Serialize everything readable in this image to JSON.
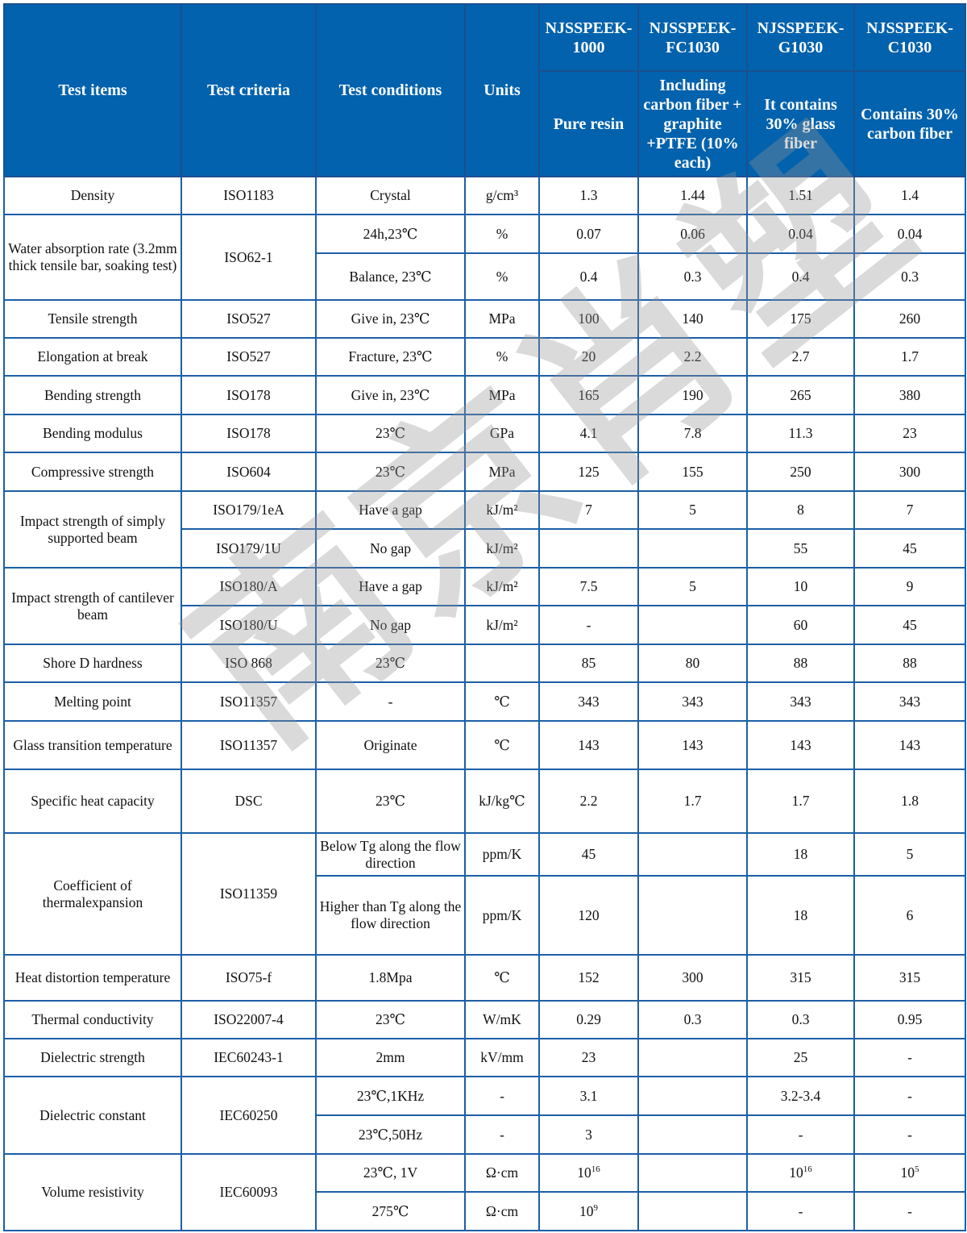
{
  "watermark": "南京肖塑",
  "header": {
    "test_items": "Test items",
    "test_criteria": "Test criteria",
    "test_conditions": "Test conditions",
    "units": "Units",
    "products": [
      {
        "name": "NJSSPEEK-1000",
        "desc": "Pure resin"
      },
      {
        "name": "NJSSPEEK-FC1030",
        "desc": "Including carbon fiber + graphite +PTFE (10% each)"
      },
      {
        "name": "NJSSPEEK-G1030",
        "desc": "It contains 30% glass fiber"
      },
      {
        "name": "NJSSPEEK-C1030",
        "desc": "Contains 30% carbon fiber"
      }
    ]
  },
  "rows": [
    {
      "cells": [
        {
          "t": "Density"
        },
        {
          "t": "ISO1183"
        },
        {
          "t": "Crystal"
        },
        {
          "t": "g/cm³"
        },
        {
          "t": "1.3"
        },
        {
          "t": "1.44"
        },
        {
          "t": "1.51"
        },
        {
          "t": "1.4"
        }
      ]
    },
    {
      "cells": [
        {
          "t": "Water absorption rate (3.2mm thick tensile bar, soaking test)",
          "rs": 2
        },
        {
          "t": "ISO62-1",
          "rs": 2
        },
        {
          "t": "24h,23℃"
        },
        {
          "t": "%"
        },
        {
          "t": "0.07"
        },
        {
          "t": "0.06"
        },
        {
          "t": "0.04"
        },
        {
          "t": "0.04"
        }
      ]
    },
    {
      "cells": [
        {
          "t": "Balance, 23℃"
        },
        {
          "t": "%"
        },
        {
          "t": "0.4"
        },
        {
          "t": "0.3"
        },
        {
          "t": "0.4"
        },
        {
          "t": "0.3"
        }
      ]
    },
    {
      "cells": [
        {
          "t": "Tensile strength"
        },
        {
          "t": "ISO527"
        },
        {
          "t": "Give in, 23℃"
        },
        {
          "t": "MPa"
        },
        {
          "t": "100"
        },
        {
          "t": "140"
        },
        {
          "t": "175"
        },
        {
          "t": "260"
        }
      ]
    },
    {
      "cells": [
        {
          "t": "Elongation at break"
        },
        {
          "t": "ISO527"
        },
        {
          "t": "Fracture, 23℃"
        },
        {
          "t": "%"
        },
        {
          "t": "20"
        },
        {
          "t": "2.2"
        },
        {
          "t": "2.7"
        },
        {
          "t": "1.7"
        }
      ]
    },
    {
      "cells": [
        {
          "t": "Bending strength"
        },
        {
          "t": "ISO178"
        },
        {
          "t": "Give in, 23℃"
        },
        {
          "t": "MPa"
        },
        {
          "t": "165"
        },
        {
          "t": "190"
        },
        {
          "t": "265"
        },
        {
          "t": "380"
        }
      ]
    },
    {
      "cells": [
        {
          "t": "Bending modulus"
        },
        {
          "t": "ISO178"
        },
        {
          "t": "23℃"
        },
        {
          "t": "GPa"
        },
        {
          "t": "4.1"
        },
        {
          "t": "7.8"
        },
        {
          "t": "11.3"
        },
        {
          "t": "23"
        }
      ]
    },
    {
      "cells": [
        {
          "t": "Compressive strength"
        },
        {
          "t": "ISO604"
        },
        {
          "t": "23℃"
        },
        {
          "t": "MPa"
        },
        {
          "t": "125"
        },
        {
          "t": "155"
        },
        {
          "t": "250"
        },
        {
          "t": "300"
        }
      ]
    },
    {
      "cells": [
        {
          "t": "Impact strength of simply supported beam",
          "rs": 2
        },
        {
          "t": "ISO179/1eA"
        },
        {
          "t": "Have a gap"
        },
        {
          "t": "kJ/m²"
        },
        {
          "t": "7"
        },
        {
          "t": "5"
        },
        {
          "t": "8"
        },
        {
          "t": "7"
        }
      ]
    },
    {
      "cells": [
        {
          "t": "ISO179/1U"
        },
        {
          "t": "No gap"
        },
        {
          "t": "kJ/m²"
        },
        {
          "t": ""
        },
        {
          "t": ""
        },
        {
          "t": "55"
        },
        {
          "t": "45"
        }
      ]
    },
    {
      "cells": [
        {
          "t": "Impact strength of cantilever beam",
          "rs": 2
        },
        {
          "t": "ISO180/A"
        },
        {
          "t": "Have a gap"
        },
        {
          "t": "kJ/m²"
        },
        {
          "t": "7.5"
        },
        {
          "t": "5"
        },
        {
          "t": "10"
        },
        {
          "t": "9"
        }
      ]
    },
    {
      "cells": [
        {
          "t": "ISO180/U"
        },
        {
          "t": "No gap"
        },
        {
          "t": "kJ/m²"
        },
        {
          "t": "-"
        },
        {
          "t": ""
        },
        {
          "t": "60"
        },
        {
          "t": "45"
        }
      ]
    },
    {
      "cells": [
        {
          "t": "Shore D hardness"
        },
        {
          "t": "ISO 868"
        },
        {
          "t": "23℃"
        },
        {
          "t": ""
        },
        {
          "t": "85"
        },
        {
          "t": "80"
        },
        {
          "t": "88"
        },
        {
          "t": "88"
        }
      ]
    },
    {
      "cells": [
        {
          "t": "Melting point"
        },
        {
          "t": "ISO11357"
        },
        {
          "t": "-"
        },
        {
          "t": "℃"
        },
        {
          "t": "343"
        },
        {
          "t": "343"
        },
        {
          "t": "343"
        },
        {
          "t": "343"
        }
      ]
    },
    {
      "cells": [
        {
          "t": "Glass transition temperature"
        },
        {
          "t": "ISO11357"
        },
        {
          "t": "Originate"
        },
        {
          "t": "℃"
        },
        {
          "t": "143"
        },
        {
          "t": "143"
        },
        {
          "t": "143"
        },
        {
          "t": "143"
        }
      ]
    },
    {
      "cells": [
        {
          "t": "Specific heat capacity"
        },
        {
          "t": "DSC"
        },
        {
          "t": "23℃"
        },
        {
          "t": "kJ/kg℃"
        },
        {
          "t": "2.2"
        },
        {
          "t": "1.7"
        },
        {
          "t": "1.7"
        },
        {
          "t": "1.8"
        }
      ]
    },
    {
      "cells": [
        {
          "t": "Coefficient of thermalexpansion",
          "rs": 2
        },
        {
          "t": "ISO11359",
          "rs": 2
        },
        {
          "t": "Below Tg along the flow direction"
        },
        {
          "t": "ppm/K"
        },
        {
          "t": "45"
        },
        {
          "t": ""
        },
        {
          "t": "18"
        },
        {
          "t": "5"
        }
      ]
    },
    {
      "cells": [
        {
          "t": "Higher than Tg along the flow direction"
        },
        {
          "t": "ppm/K"
        },
        {
          "t": "120"
        },
        {
          "t": ""
        },
        {
          "t": "18"
        },
        {
          "t": "6"
        }
      ]
    },
    {
      "cells": [
        {
          "t": "Heat distortion temperature"
        },
        {
          "t": "ISO75-f"
        },
        {
          "t": "1.8Mpa"
        },
        {
          "t": "℃"
        },
        {
          "t": "152"
        },
        {
          "t": "300"
        },
        {
          "t": "315"
        },
        {
          "t": "315"
        }
      ]
    },
    {
      "cells": [
        {
          "t": "Thermal conductivity"
        },
        {
          "t": "ISO22007-4"
        },
        {
          "t": "23℃"
        },
        {
          "t": "W/mK"
        },
        {
          "t": "0.29"
        },
        {
          "t": "0.3"
        },
        {
          "t": "0.3"
        },
        {
          "t": "0.95"
        }
      ]
    },
    {
      "cells": [
        {
          "t": "Dielectric strength"
        },
        {
          "t": "IEC60243-1"
        },
        {
          "t": "2mm"
        },
        {
          "t": "kV/mm"
        },
        {
          "t": "23"
        },
        {
          "t": ""
        },
        {
          "t": "25"
        },
        {
          "t": "-"
        }
      ]
    },
    {
      "cells": [
        {
          "t": "Dielectric constant",
          "rs": 2
        },
        {
          "t": "IEC60250",
          "rs": 2
        },
        {
          "t": "23℃,1KHz"
        },
        {
          "t": "-"
        },
        {
          "t": "3.1"
        },
        {
          "t": ""
        },
        {
          "t": "3.2-3.4"
        },
        {
          "t": "-"
        }
      ]
    },
    {
      "cells": [
        {
          "t": "23℃,50Hz"
        },
        {
          "t": "-"
        },
        {
          "t": "3"
        },
        {
          "t": ""
        },
        {
          "t": "-"
        },
        {
          "t": "-"
        }
      ]
    },
    {
      "cells": [
        {
          "t": "Volume resistivity",
          "rs": 2
        },
        {
          "t": "IEC60093",
          "rs": 2
        },
        {
          "t": "23℃, 1V"
        },
        {
          "t": "Ω·cm"
        },
        {
          "t": "10",
          "sup": "16"
        },
        {
          "t": ""
        },
        {
          "t": "10",
          "sup": "16"
        },
        {
          "t": "10",
          "sup": "5"
        }
      ]
    },
    {
      "cells": [
        {
          "t": "275℃"
        },
        {
          "t": "Ω·cm"
        },
        {
          "t": "10",
          "sup": "9"
        },
        {
          "t": ""
        },
        {
          "t": "-"
        },
        {
          "t": "-"
        }
      ]
    }
  ]
}
